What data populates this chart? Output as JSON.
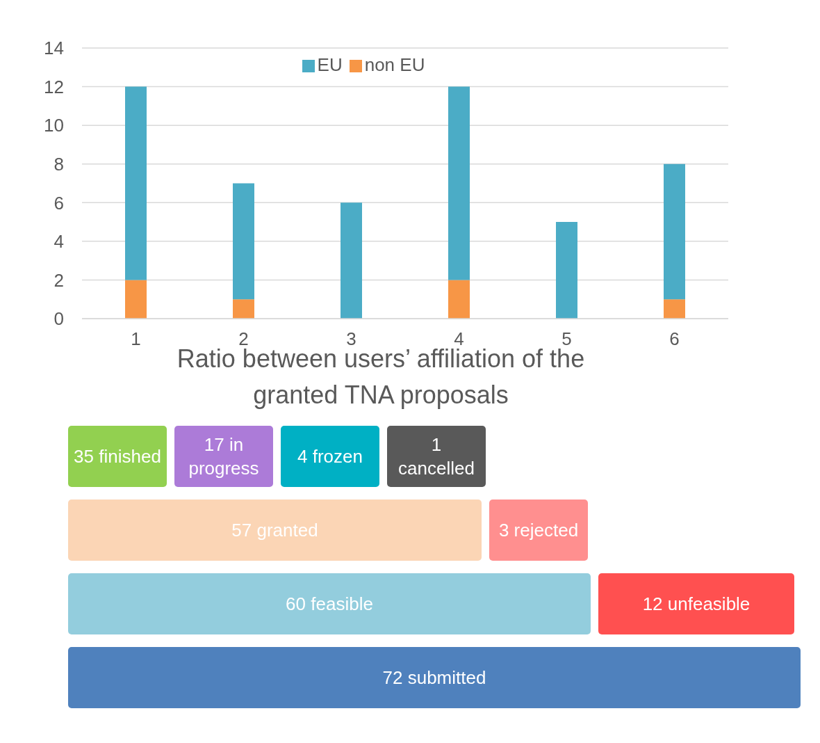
{
  "chart_data": [
    {
      "type": "bar",
      "title": "Ratio between users’ affiliation of the granted TNA proposals",
      "categories": [
        "1",
        "2",
        "3",
        "4",
        "5",
        "6"
      ],
      "stacked": true,
      "series": [
        {
          "name": "non EU",
          "color": "#f79646",
          "values": [
            2,
            1,
            0,
            2,
            0,
            1
          ]
        },
        {
          "name": "EU",
          "color": "#4bacc6",
          "values": [
            10,
            6,
            6,
            10,
            5,
            7
          ]
        }
      ],
      "ylim": [
        0,
        14
      ],
      "yticks": [
        0,
        2,
        4,
        6,
        8,
        10,
        12,
        14
      ],
      "grid": "y",
      "legend": "top"
    },
    {
      "type": "other",
      "categories": [
        "finished",
        "in progress",
        "frozen",
        "cancelled"
      ],
      "values": [
        35,
        17,
        4,
        1
      ],
      "colors": [
        "#92d050",
        "#ac7bd8",
        "#00b0c4",
        "#595959"
      ],
      "data_labels": true
    },
    {
      "type": "other",
      "categories": [
        "granted",
        "rejected"
      ],
      "values": [
        57,
        3
      ],
      "colors": [
        "#fbd5b5",
        "#ff8f8f"
      ],
      "data_labels": true
    },
    {
      "type": "other",
      "categories": [
        "feasible",
        "unfeasible"
      ],
      "values": [
        60,
        12
      ],
      "colors": [
        "#93cddd",
        "#ff5050"
      ],
      "data_labels": true
    },
    {
      "type": "other",
      "categories": [
        "submitted"
      ],
      "values": [
        72
      ],
      "colors": [
        "#4f81bd"
      ],
      "data_labels": true
    }
  ]
}
